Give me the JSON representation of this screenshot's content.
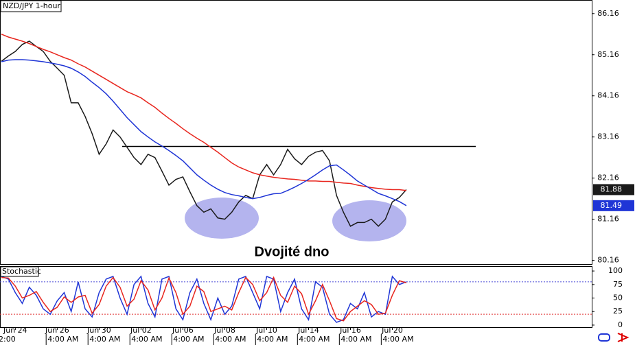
{
  "chart_data": [
    {
      "type": "line",
      "title": "NZD/JPY 1-hour",
      "annotation": "Dvojité dno",
      "level": 82.93,
      "categories": [
        null,
        null,
        "Jun 24",
        null,
        null,
        null,
        null,
        null,
        "Jun 26",
        null,
        null,
        null,
        null,
        null,
        "Jun 30",
        null,
        null,
        null,
        null,
        null,
        "Jul 02",
        null,
        null,
        null,
        null,
        null,
        "Jul 06",
        null,
        null,
        null,
        null,
        null,
        "Jul 08",
        null,
        null,
        null,
        null,
        null,
        "Jul 10",
        null,
        null,
        null,
        null,
        null,
        "Jul 14",
        null,
        null,
        null,
        null,
        null,
        "Jul 16",
        null,
        null,
        null,
        null,
        null,
        "Jul 20",
        null,
        null
      ],
      "sessions": [
        "2:00",
        null,
        null,
        null,
        null,
        null,
        null,
        "4:00 AM",
        null,
        null,
        null,
        null,
        null,
        "4:00 AM",
        null,
        null,
        null,
        null,
        null,
        "4:00 AM",
        null,
        null,
        null,
        null,
        null,
        "4:00 AM",
        null,
        null,
        null,
        null,
        null,
        "4:00 AM",
        null,
        null,
        null,
        null,
        null,
        "4:00 AM",
        null,
        null,
        null,
        null,
        null,
        "4:00 AM",
        null,
        null,
        null,
        null,
        null,
        "4:00 AM",
        null,
        null,
        null,
        null,
        null,
        "4:00 AM",
        null,
        null,
        null
      ],
      "series": [
        {
          "color": "#1a1a1a",
          "tag": true,
          "values": [
            85.0,
            85.13,
            85.24,
            85.41,
            85.49,
            85.36,
            85.24,
            85.0,
            84.83,
            84.66,
            83.99,
            83.99,
            83.66,
            83.24,
            82.74,
            82.99,
            83.33,
            83.16,
            82.91,
            82.66,
            82.49,
            82.74,
            82.66,
            82.33,
            81.99,
            82.13,
            82.19,
            81.83,
            81.49,
            81.33,
            81.41,
            81.19,
            81.16,
            81.33,
            81.58,
            81.74,
            81.66,
            82.24,
            82.49,
            82.24,
            82.49,
            82.86,
            82.63,
            82.49,
            82.69,
            82.79,
            82.83,
            82.58,
            81.74,
            81.33,
            80.99,
            81.08,
            81.08,
            81.16,
            80.99,
            81.16,
            81.58,
            81.69,
            81.88
          ]
        },
        {
          "color": "#e8261e",
          "values": [
            85.66,
            85.59,
            85.54,
            85.49,
            85.43,
            85.36,
            85.29,
            85.23,
            85.16,
            85.09,
            85.03,
            84.94,
            84.86,
            84.76,
            84.66,
            84.56,
            84.46,
            84.36,
            84.26,
            84.19,
            84.11,
            83.99,
            83.88,
            83.74,
            83.61,
            83.49,
            83.36,
            83.24,
            83.13,
            83.03,
            82.91,
            82.79,
            82.66,
            82.53,
            82.43,
            82.36,
            82.29,
            82.24,
            82.21,
            82.18,
            82.16,
            82.14,
            82.13,
            82.11,
            82.09,
            82.09,
            82.08,
            82.08,
            82.06,
            82.04,
            82.03,
            81.99,
            81.96,
            81.93,
            81.91,
            81.89,
            81.88,
            81.88,
            81.86
          ]
        },
        {
          "color": "#1f35d6",
          "tag": true,
          "values": [
            84.99,
            85.03,
            85.04,
            85.04,
            85.03,
            85.01,
            84.99,
            84.96,
            84.93,
            84.89,
            84.83,
            84.74,
            84.63,
            84.49,
            84.36,
            84.21,
            84.03,
            83.83,
            83.63,
            83.46,
            83.29,
            83.16,
            83.04,
            82.94,
            82.83,
            82.71,
            82.58,
            82.41,
            82.24,
            82.11,
            81.99,
            81.89,
            81.81,
            81.76,
            81.73,
            81.69,
            81.66,
            81.69,
            81.74,
            81.78,
            81.79,
            81.86,
            81.94,
            82.03,
            82.13,
            82.24,
            82.36,
            82.46,
            82.48,
            82.36,
            82.23,
            82.09,
            81.99,
            81.89,
            81.79,
            81.73,
            81.66,
            81.59,
            81.49
          ]
        }
      ],
      "ylim": [
        80.07,
        86.49
      ],
      "yticks": [
        80.16,
        81.16,
        82.16,
        83.16,
        84.16,
        85.16,
        86.16
      ]
    },
    {
      "type": "line",
      "title": "Stochastic",
      "series": [
        {
          "color": "#1f35d6",
          "values": [
            90,
            85,
            60,
            40,
            70,
            55,
            30,
            20,
            45,
            60,
            25,
            80,
            30,
            15,
            60,
            85,
            90,
            50,
            20,
            75,
            90,
            40,
            15,
            85,
            90,
            30,
            10,
            60,
            85,
            40,
            10,
            50,
            20,
            35,
            85,
            90,
            60,
            30,
            90,
            85,
            25,
            60,
            85,
            30,
            10,
            80,
            70,
            20,
            5,
            10,
            40,
            30,
            60,
            15,
            25,
            20,
            90,
            75,
            80
          ]
        },
        {
          "color": "#e8261e",
          "values": [
            88,
            87,
            72,
            50,
            55,
            62,
            42,
            25,
            33,
            52,
            42,
            52,
            55,
            22,
            38,
            72,
            88,
            70,
            35,
            48,
            82,
            65,
            28,
            50,
            87,
            60,
            20,
            35,
            72,
            62,
            25,
            30,
            35,
            28,
            60,
            88,
            75,
            45,
            60,
            88,
            55,
            42,
            72,
            58,
            20,
            45,
            75,
            45,
            12,
            8,
            25,
            35,
            45,
            38,
            20,
            22,
            55,
            82,
            78
          ]
        }
      ],
      "levels": [
        {
          "value": 80,
          "color": "#4b4bd6"
        },
        {
          "value": 20,
          "color": "#e03030"
        }
      ],
      "ylim": [
        -14,
        109
      ],
      "yticks": [
        0,
        25,
        50,
        75,
        100
      ]
    }
  ]
}
